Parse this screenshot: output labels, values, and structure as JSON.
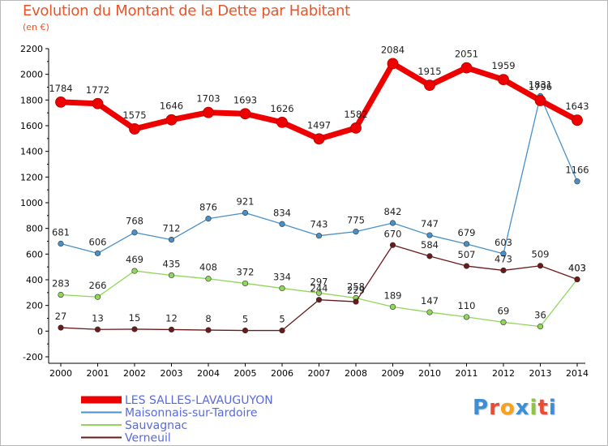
{
  "title": "Evolution du Montant de la Dette par Habitant",
  "subtitle": "(en €)",
  "logo": {
    "text": "Proxiti",
    "colors": [
      "#3a8fd6",
      "#e94b35",
      "#f7a21b",
      "#3a8fd6",
      "#8fc53f",
      "#e94b35",
      "#3a8fd6"
    ]
  },
  "chart_data": {
    "type": "line",
    "title": "Evolution du Montant de la Dette par Habitant",
    "ylabel": "(en €)",
    "xlabel": "",
    "ylim": [
      -200,
      2200
    ],
    "yticks": [
      -200,
      0,
      200,
      400,
      600,
      800,
      1000,
      1200,
      1400,
      1600,
      1800,
      2000,
      2200
    ],
    "grid": false,
    "legend_position": "bottom-left",
    "x": [
      "2000",
      "2001",
      "2002",
      "2003",
      "2004",
      "2005",
      "2006",
      "2007",
      "2008",
      "2009",
      "2010",
      "2011",
      "2012",
      "2013",
      "2014"
    ],
    "series": [
      {
        "name": "LES SALLES-LAVAUGUYON",
        "color": "#ee0000",
        "emphasis": true,
        "values": [
          1784,
          1772,
          1575,
          1646,
          1703,
          1693,
          1626,
          1497,
          1582,
          2084,
          1915,
          2051,
          1959,
          1796,
          1643
        ]
      },
      {
        "name": "Maisonnais-sur-Tardoire",
        "color": "#4a90c8",
        "emphasis": false,
        "values": [
          681,
          606,
          768,
          712,
          876,
          921,
          834,
          743,
          775,
          842,
          747,
          679,
          603,
          1831,
          1166
        ]
      },
      {
        "name": "Sauvagnac",
        "color": "#8fd65a",
        "emphasis": false,
        "values": [
          283,
          266,
          469,
          435,
          408,
          372,
          334,
          297,
          258,
          189,
          147,
          110,
          69,
          36,
          403
        ]
      },
      {
        "name": "Verneuil",
        "color": "#6b1a1a",
        "emphasis": false,
        "values": [
          27,
          13,
          15,
          12,
          8,
          5,
          5,
          244,
          229,
          670,
          584,
          507,
          473,
          509,
          403
        ]
      }
    ]
  }
}
